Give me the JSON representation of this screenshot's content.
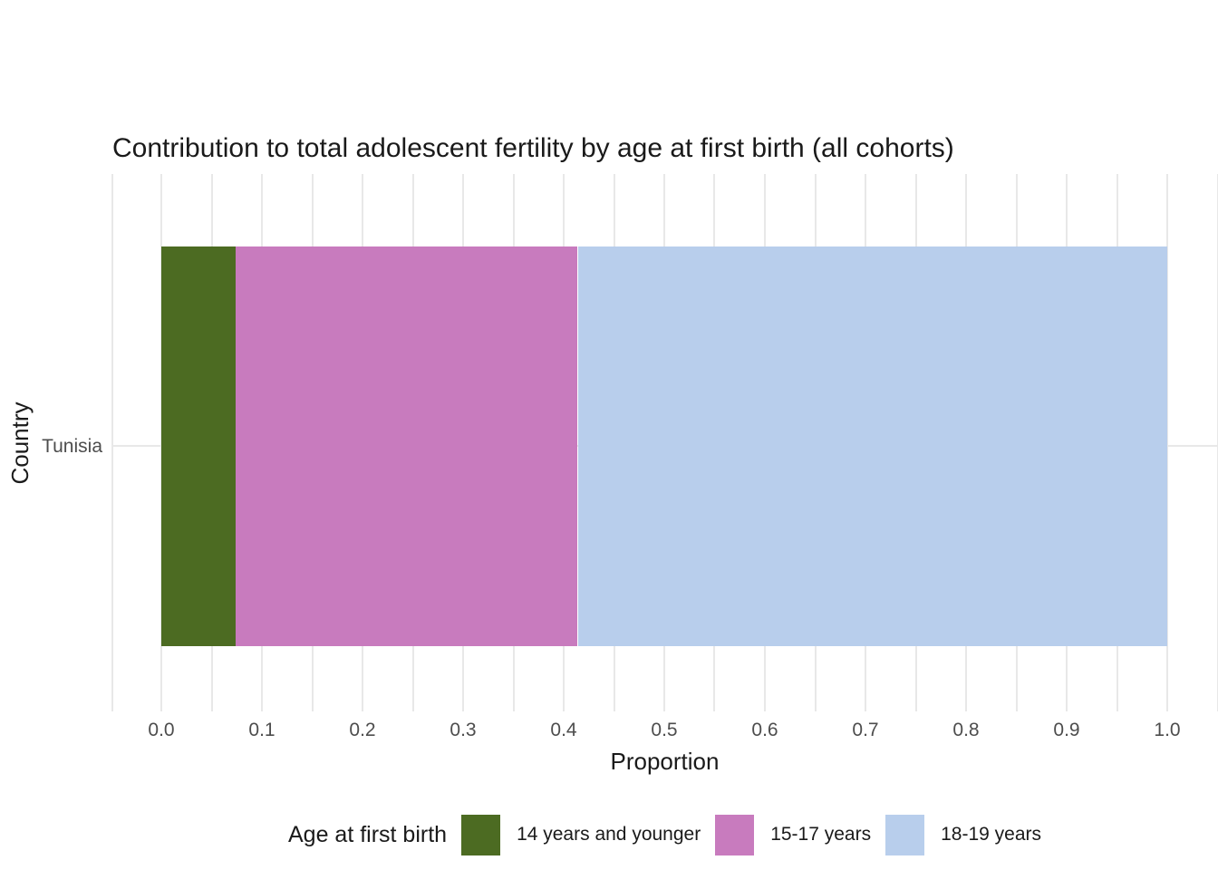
{
  "title": "Contribution to total adolescent fertility by age at first birth (all cohorts)",
  "chart_data": {
    "type": "bar",
    "orientation": "horizontal",
    "stacked": true,
    "title": "Contribution to total adolescent fertility by age at first birth (all cohorts)",
    "xlabel": "Proportion",
    "ylabel": "Country",
    "categories": [
      "Tunisia"
    ],
    "series": [
      {
        "name": "14 years and younger",
        "values": [
          0.074
        ],
        "color": "#4C6B22"
      },
      {
        "name": "15-17 years",
        "values": [
          0.34
        ],
        "color": "#C87BBE"
      },
      {
        "name": "18-19 years",
        "values": [
          0.586
        ],
        "color": "#B8CEEC"
      }
    ],
    "xlim": [
      -0.05,
      1.05
    ],
    "xtick_labels": [
      "0.0",
      "0.1",
      "0.2",
      "0.3",
      "0.4",
      "0.5",
      "0.6",
      "0.7",
      "0.8",
      "0.9",
      "1.0"
    ],
    "xtick_values": [
      0.0,
      0.1,
      0.2,
      0.3,
      0.4,
      0.5,
      0.6,
      0.7,
      0.8,
      0.9,
      1.0
    ],
    "minor_grid_step": 0.05,
    "grid": true,
    "legend": {
      "title": "Age at first birth",
      "position": "bottom"
    }
  },
  "colors": {
    "background": "#FFFFFF",
    "grid": "#E8E8E8",
    "tick_label": "#4D4D4D",
    "text": "#1A1A1A"
  }
}
